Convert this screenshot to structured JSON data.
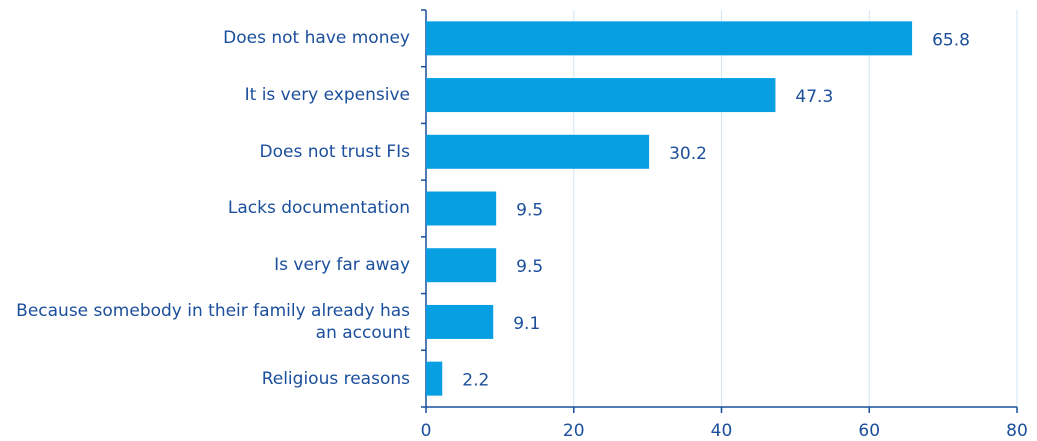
{
  "chart_data": {
    "type": "bar",
    "orientation": "horizontal",
    "categories": [
      "Does not have money",
      "It is very expensive",
      "Does not trust FIs",
      "Lacks documentation",
      "Is very far away",
      "Because somebody in their family already has an account",
      "Religious reasons"
    ],
    "values": [
      65.8,
      47.3,
      30.2,
      9.5,
      9.5,
      9.1,
      2.2
    ],
    "color": "#079fe2",
    "xlim": [
      0,
      80
    ],
    "xticks": [
      0,
      20,
      40,
      60,
      80
    ],
    "grid": true
  }
}
